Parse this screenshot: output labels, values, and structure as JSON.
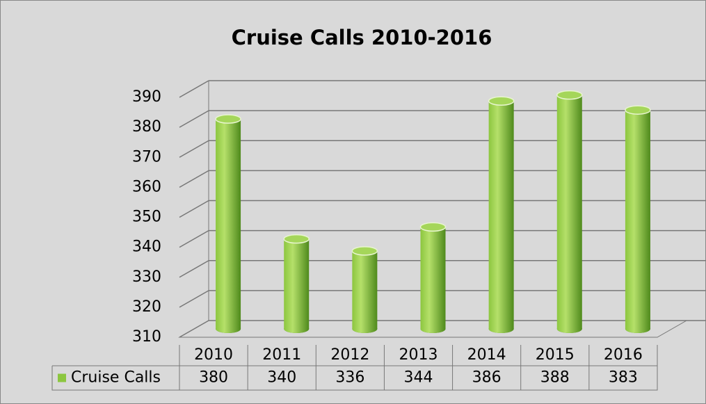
{
  "chart_data": {
    "type": "bar",
    "title": "Cruise Calls 2010-2016",
    "categories": [
      "2010",
      "2011",
      "2012",
      "2013",
      "2014",
      "2015",
      "2016"
    ],
    "series": [
      {
        "name": "Cruise Calls",
        "color": "#8cc63f",
        "values": [
          380,
          340,
          336,
          344,
          386,
          388,
          383
        ]
      }
    ],
    "ylim": [
      310,
      390
    ],
    "yticks": [
      310,
      320,
      330,
      340,
      350,
      360,
      370,
      380,
      390
    ],
    "grid": true,
    "data_table": true
  }
}
